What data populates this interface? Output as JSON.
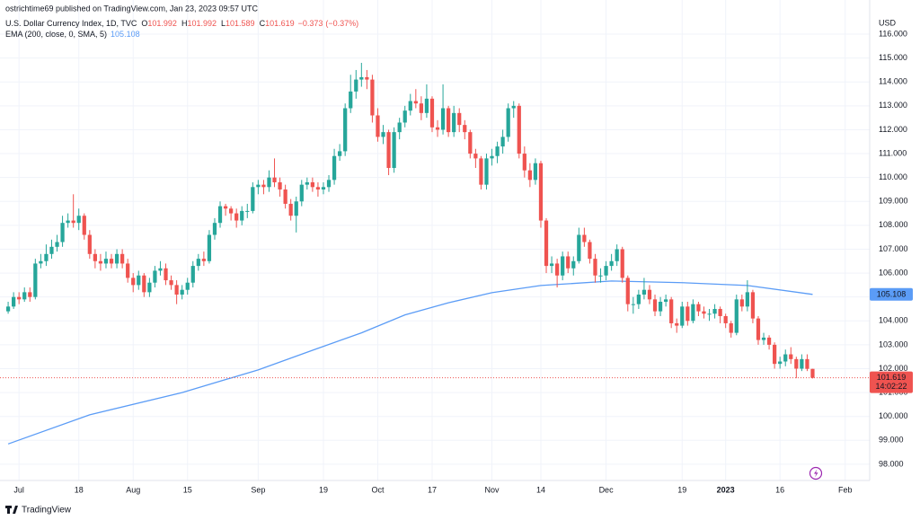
{
  "chart_data": {
    "type": "candlestick",
    "header": "ostrichtime69 published on TradingView.com, Jan 23, 2023 09:57 UTC",
    "symbol": "U.S. Dollar Currency Index, 1D, TVC",
    "ohlc_keys": [
      "O",
      "H",
      "L",
      "C"
    ],
    "change": {
      "value": -0.373,
      "label": "−0.373"
    },
    "change_pct": {
      "value": -0.37,
      "label": "(−0.37%)"
    },
    "currency": "USD",
    "countdown": "14:02:22",
    "brand": "TradingView",
    "up_color": "#26a69a",
    "down_color": "#ef5350",
    "grid": true,
    "ohlc": [
      [
        104.4,
        104.8,
        104.3,
        104.6
      ],
      [
        104.6,
        105.2,
        104.5,
        105.0
      ],
      [
        105.0,
        105.2,
        104.7,
        104.9
      ],
      [
        104.9,
        105.4,
        104.8,
        105.2
      ],
      [
        105.2,
        105.4,
        104.8,
        105.0
      ],
      [
        105.0,
        106.6,
        104.9,
        106.4
      ],
      [
        106.4,
        106.8,
        106.2,
        106.5
      ],
      [
        106.5,
        107.2,
        106.3,
        106.8
      ],
      [
        106.8,
        107.4,
        106.6,
        107.1
      ],
      [
        107.1,
        107.6,
        106.9,
        107.3
      ],
      [
        107.3,
        108.4,
        107.1,
        108.1
      ],
      [
        108.1,
        108.5,
        107.9,
        108.2
      ],
      [
        108.2,
        109.3,
        107.9,
        108.1
      ],
      [
        108.1,
        108.7,
        107.8,
        108.4
      ],
      [
        108.4,
        108.5,
        107.4,
        107.6
      ],
      [
        107.6,
        107.8,
        106.6,
        106.8
      ],
      [
        106.8,
        107.0,
        106.2,
        106.5
      ],
      [
        106.5,
        106.8,
        106.1,
        106.4
      ],
      [
        106.4,
        106.9,
        106.2,
        106.6
      ],
      [
        106.6,
        106.8,
        106.2,
        106.4
      ],
      [
        106.4,
        107.0,
        106.2,
        106.8
      ],
      [
        106.8,
        107.0,
        106.2,
        106.4
      ],
      [
        106.4,
        106.6,
        105.6,
        105.8
      ],
      [
        105.8,
        106.0,
        105.2,
        105.5
      ],
      [
        105.5,
        106.1,
        105.3,
        105.9
      ],
      [
        105.9,
        106.0,
        105.0,
        105.2
      ],
      [
        105.2,
        105.8,
        105.0,
        105.6
      ],
      [
        105.6,
        106.3,
        105.4,
        106.1
      ],
      [
        106.1,
        106.5,
        105.9,
        106.2
      ],
      [
        106.2,
        106.4,
        105.5,
        105.7
      ],
      [
        105.7,
        105.9,
        105.3,
        105.5
      ],
      [
        105.5,
        105.7,
        104.7,
        105.1
      ],
      [
        105.1,
        105.5,
        104.9,
        105.3
      ],
      [
        105.3,
        105.8,
        105.1,
        105.6
      ],
      [
        105.6,
        106.5,
        105.4,
        106.3
      ],
      [
        106.3,
        106.8,
        106.1,
        106.6
      ],
      [
        106.6,
        106.9,
        106.3,
        106.5
      ],
      [
        106.5,
        107.8,
        106.4,
        107.6
      ],
      [
        107.6,
        108.3,
        107.4,
        108.1
      ],
      [
        108.1,
        109.0,
        107.9,
        108.8
      ],
      [
        108.8,
        108.9,
        108.4,
        108.7
      ],
      [
        108.7,
        108.8,
        108.2,
        108.5
      ],
      [
        108.5,
        108.7,
        107.9,
        108.2
      ],
      [
        108.2,
        108.8,
        108.0,
        108.6
      ],
      [
        108.6,
        108.9,
        108.3,
        108.6
      ],
      [
        108.6,
        109.8,
        108.5,
        109.6
      ],
      [
        109.6,
        109.9,
        109.3,
        109.7
      ],
      [
        109.7,
        109.9,
        109.3,
        109.6
      ],
      [
        109.6,
        110.3,
        109.4,
        110.0
      ],
      [
        110.0,
        110.8,
        109.6,
        109.8
      ],
      [
        109.8,
        110.0,
        109.2,
        109.5
      ],
      [
        109.5,
        109.7,
        108.7,
        108.9
      ],
      [
        108.9,
        109.1,
        108.2,
        108.4
      ],
      [
        108.4,
        109.2,
        107.7,
        109.0
      ],
      [
        109.0,
        109.9,
        108.8,
        109.7
      ],
      [
        109.7,
        110.0,
        109.5,
        109.8
      ],
      [
        109.8,
        110.0,
        109.4,
        109.6
      ],
      [
        109.6,
        109.8,
        109.2,
        109.5
      ],
      [
        109.5,
        109.8,
        109.3,
        109.6
      ],
      [
        109.6,
        110.1,
        109.4,
        109.9
      ],
      [
        109.9,
        111.2,
        109.7,
        110.9
      ],
      [
        110.9,
        111.4,
        110.7,
        111.1
      ],
      [
        111.1,
        113.1,
        110.9,
        112.9
      ],
      [
        112.9,
        114.3,
        112.7,
        113.6
      ],
      [
        113.6,
        114.5,
        113.3,
        114.1
      ],
      [
        114.1,
        114.8,
        113.8,
        114.2
      ],
      [
        114.2,
        114.5,
        113.7,
        114.1
      ],
      [
        114.1,
        114.3,
        112.3,
        112.6
      ],
      [
        112.6,
        112.9,
        111.5,
        111.7
      ],
      [
        111.7,
        112.2,
        111.4,
        111.9
      ],
      [
        111.9,
        112.0,
        110.1,
        110.4
      ],
      [
        110.4,
        112.1,
        110.2,
        111.9
      ],
      [
        111.9,
        112.5,
        111.6,
        112.3
      ],
      [
        112.3,
        113.0,
        112.1,
        112.8
      ],
      [
        112.8,
        113.5,
        112.6,
        113.2
      ],
      [
        113.2,
        113.7,
        112.9,
        113.1
      ],
      [
        113.1,
        113.4,
        112.4,
        112.7
      ],
      [
        112.7,
        113.9,
        112.5,
        113.3
      ],
      [
        113.3,
        113.4,
        111.9,
        112.1
      ],
      [
        112.1,
        112.4,
        111.7,
        112.0
      ],
      [
        112.0,
        113.9,
        111.8,
        112.9
      ],
      [
        112.9,
        113.0,
        111.7,
        111.9
      ],
      [
        111.9,
        113.0,
        111.7,
        112.7
      ],
      [
        112.7,
        112.9,
        111.9,
        112.2
      ],
      [
        112.2,
        112.4,
        111.6,
        111.9
      ],
      [
        111.9,
        112.0,
        110.8,
        111.0
      ],
      [
        111.0,
        111.2,
        110.4,
        110.8
      ],
      [
        110.8,
        110.9,
        109.5,
        109.7
      ],
      [
        109.7,
        111.0,
        109.5,
        110.8
      ],
      [
        110.8,
        111.2,
        110.5,
        110.9
      ],
      [
        110.9,
        111.5,
        110.6,
        111.3
      ],
      [
        111.3,
        112.0,
        111.0,
        111.7
      ],
      [
        111.7,
        113.1,
        111.5,
        112.9
      ],
      [
        112.9,
        113.2,
        112.5,
        113.0
      ],
      [
        113.0,
        113.1,
        110.8,
        111.0
      ],
      [
        111.0,
        111.3,
        110.0,
        110.3
      ],
      [
        110.3,
        110.6,
        109.6,
        109.9
      ],
      [
        109.9,
        110.8,
        109.7,
        110.6
      ],
      [
        110.6,
        110.7,
        107.9,
        108.2
      ],
      [
        108.2,
        108.3,
        106.0,
        106.3
      ],
      [
        106.3,
        106.7,
        106.0,
        106.4
      ],
      [
        106.4,
        106.6,
        105.4,
        105.9
      ],
      [
        105.9,
        106.9,
        105.7,
        106.7
      ],
      [
        106.7,
        106.9,
        106.0,
        106.2
      ],
      [
        106.2,
        106.7,
        105.9,
        106.5
      ],
      [
        106.5,
        107.9,
        106.4,
        107.6
      ],
      [
        107.6,
        107.9,
        107.1,
        107.3
      ],
      [
        107.3,
        107.4,
        106.4,
        106.6
      ],
      [
        106.6,
        106.8,
        105.6,
        105.9
      ],
      [
        105.9,
        106.2,
        105.6,
        105.9
      ],
      [
        105.9,
        106.5,
        105.7,
        106.3
      ],
      [
        106.3,
        106.8,
        106.1,
        106.5
      ],
      [
        106.5,
        107.2,
        106.3,
        107.0
      ],
      [
        107.0,
        107.1,
        105.6,
        105.8
      ],
      [
        105.8,
        105.9,
        104.4,
        104.7
      ],
      [
        104.7,
        105.0,
        104.3,
        104.7
      ],
      [
        104.7,
        105.3,
        104.5,
        105.1
      ],
      [
        105.1,
        105.8,
        104.9,
        105.3
      ],
      [
        105.3,
        105.5,
        104.7,
        104.9
      ],
      [
        104.9,
        105.1,
        104.2,
        104.4
      ],
      [
        104.4,
        105.0,
        104.2,
        104.8
      ],
      [
        104.8,
        105.1,
        104.6,
        104.9
      ],
      [
        104.9,
        105.0,
        103.7,
        103.9
      ],
      [
        103.9,
        104.1,
        103.5,
        103.8
      ],
      [
        103.8,
        104.8,
        103.7,
        104.6
      ],
      [
        104.6,
        104.8,
        103.8,
        104.0
      ],
      [
        104.0,
        104.9,
        103.9,
        104.7
      ],
      [
        104.7,
        104.8,
        104.2,
        104.4
      ],
      [
        104.4,
        104.6,
        104.1,
        104.3
      ],
      [
        104.3,
        104.5,
        104.0,
        104.3
      ],
      [
        104.3,
        104.7,
        104.1,
        104.5
      ],
      [
        104.5,
        104.6,
        103.9,
        104.2
      ],
      [
        104.2,
        104.3,
        103.7,
        103.9
      ],
      [
        103.9,
        104.0,
        103.3,
        103.5
      ],
      [
        103.5,
        105.1,
        103.4,
        104.9
      ],
      [
        104.9,
        105.1,
        104.4,
        104.6
      ],
      [
        104.6,
        105.7,
        104.4,
        105.2
      ],
      [
        105.2,
        105.3,
        103.9,
        104.1
      ],
      [
        104.1,
        104.2,
        103.0,
        103.2
      ],
      [
        103.2,
        103.5,
        103.0,
        103.3
      ],
      [
        103.3,
        103.4,
        102.8,
        103.0
      ],
      [
        103.0,
        103.1,
        102.0,
        102.2
      ],
      [
        102.2,
        102.5,
        102.0,
        102.3
      ],
      [
        102.3,
        102.8,
        102.1,
        102.6
      ],
      [
        102.6,
        102.9,
        102.2,
        102.4
      ],
      [
        102.4,
        102.5,
        101.6,
        102.0
      ],
      [
        102.0,
        102.6,
        101.9,
        102.4
      ],
      [
        102.4,
        102.6,
        101.9,
        101.992
      ],
      [
        101.992,
        101.992,
        101.589,
        101.619
      ]
    ],
    "ema": {
      "name": "EMA (200, close, 0, SMA, 5)",
      "color": "#5b9cf6",
      "x": [
        0,
        15,
        32,
        46,
        56,
        65,
        73,
        81,
        89,
        98,
        111,
        124,
        136,
        148
      ],
      "values": [
        98.85,
        100.07,
        101.0,
        101.95,
        102.77,
        103.5,
        104.25,
        104.76,
        105.18,
        105.48,
        105.67,
        105.6,
        105.48,
        105.108
      ]
    },
    "xlim": [
      -1.5,
      158.5
    ],
    "xticks": [
      {
        "value": 2,
        "label": "Jul"
      },
      {
        "value": 13,
        "label": "18"
      },
      {
        "value": 23,
        "label": "Aug"
      },
      {
        "value": 33,
        "label": "15"
      },
      {
        "value": 46,
        "label": "Sep"
      },
      {
        "value": 58,
        "label": "19"
      },
      {
        "value": 68,
        "label": "Oct"
      },
      {
        "value": 78,
        "label": "17"
      },
      {
        "value": 89,
        "label": "Nov"
      },
      {
        "value": 98,
        "label": "14"
      },
      {
        "value": 110,
        "label": "Dec"
      },
      {
        "value": 124,
        "label": "19"
      },
      {
        "value": 132,
        "label": "2023"
      },
      {
        "value": 142,
        "label": "16"
      },
      {
        "value": 154,
        "label": "Feb"
      }
    ],
    "ylim": [
      97.32,
      117.43
    ],
    "yticks": [
      {
        "value": 98,
        "label": "98.000"
      },
      {
        "value": 99,
        "label": "99.000"
      },
      {
        "value": 100,
        "label": "100.000"
      },
      {
        "value": 101,
        "label": "101.000"
      },
      {
        "value": 102,
        "label": "102.000"
      },
      {
        "value": 103,
        "label": "103.000"
      },
      {
        "value": 104,
        "label": "104.000"
      },
      {
        "value": 105,
        "label": "105.000"
      },
      {
        "value": 106,
        "label": "106.000"
      },
      {
        "value": 107,
        "label": "107.000"
      },
      {
        "value": 108,
        "label": "108.000"
      },
      {
        "value": 109,
        "label": "109.000"
      },
      {
        "value": 110,
        "label": "110.000"
      },
      {
        "value": 111,
        "label": "111.000"
      },
      {
        "value": 112,
        "label": "112.000"
      },
      {
        "value": 113,
        "label": "113.000"
      },
      {
        "value": 114,
        "label": "114.000"
      },
      {
        "value": 115,
        "label": "115.000"
      },
      {
        "value": 116,
        "label": "116.000"
      }
    ]
  }
}
